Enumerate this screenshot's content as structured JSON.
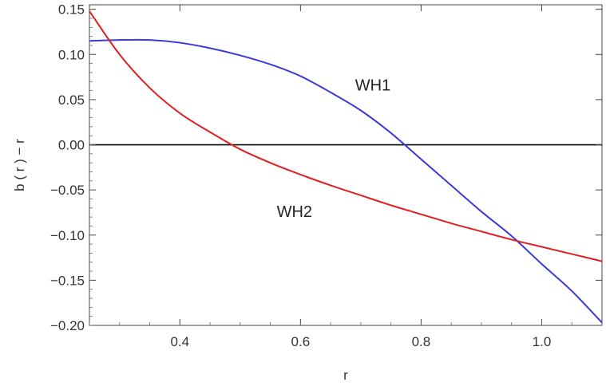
{
  "chart_data": {
    "type": "line",
    "title": "",
    "xlabel": "r",
    "ylabel": "b ( r ) − r",
    "xlim": [
      0.25,
      1.1
    ],
    "ylim": [
      -0.2,
      0.155
    ],
    "x_ticks": [
      {
        "value": 0.4,
        "label": "0.4"
      },
      {
        "value": 0.6,
        "label": "0.6"
      },
      {
        "value": 0.8,
        "label": "0.8"
      },
      {
        "value": 1.0,
        "label": "1.0"
      }
    ],
    "y_ticks": [
      {
        "value": 0.15,
        "label": "0.15"
      },
      {
        "value": 0.1,
        "label": "0.10"
      },
      {
        "value": 0.05,
        "label": "0.05"
      },
      {
        "value": 0.0,
        "label": "0.00"
      },
      {
        "value": -0.05,
        "label": "−0.05"
      },
      {
        "value": -0.1,
        "label": "−0.10"
      },
      {
        "value": -0.15,
        "label": "−0.15"
      },
      {
        "value": -0.2,
        "label": "−0.20"
      }
    ],
    "zero_line": true,
    "grid": false,
    "series": [
      {
        "name": "WH1",
        "color": "#3a3ad8",
        "x": [
          0.25,
          0.3,
          0.35,
          0.4,
          0.45,
          0.5,
          0.55,
          0.6,
          0.65,
          0.7,
          0.75,
          0.8,
          0.85,
          0.9,
          0.95,
          1.0,
          1.05,
          1.1
        ],
        "y": [
          0.115,
          0.116,
          0.116,
          0.113,
          0.107,
          0.099,
          0.089,
          0.076,
          0.058,
          0.038,
          0.013,
          -0.016,
          -0.045,
          -0.074,
          -0.101,
          -0.132,
          -0.162,
          -0.197
        ]
      },
      {
        "name": "WH2",
        "color": "#e02020",
        "x": [
          0.25,
          0.3,
          0.35,
          0.4,
          0.45,
          0.5,
          0.55,
          0.6,
          0.65,
          0.7,
          0.75,
          0.8,
          0.85,
          0.9,
          0.95,
          1.0,
          1.05,
          1.1
        ],
        "y": [
          0.148,
          0.1,
          0.063,
          0.035,
          0.014,
          -0.005,
          -0.02,
          -0.033,
          -0.045,
          -0.056,
          -0.067,
          -0.077,
          -0.087,
          -0.096,
          -0.105,
          -0.113,
          -0.121,
          -0.129
        ]
      }
    ],
    "annotations": [
      {
        "text": "WH1",
        "x": 0.72,
        "y": 0.06
      },
      {
        "text": "WH2",
        "x": 0.59,
        "y": -0.08
      }
    ]
  }
}
